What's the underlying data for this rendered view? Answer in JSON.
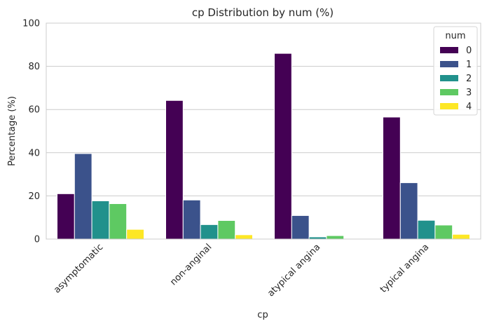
{
  "chart_data": {
    "type": "bar",
    "title": "cp Distribution by num (%)",
    "xlabel": "cp",
    "ylabel": "Percentage (%)",
    "ylim": [
      0,
      100
    ],
    "yticks": [
      0,
      20,
      40,
      60,
      80,
      100
    ],
    "grid": "horizontal",
    "categories": [
      "asymptomatic",
      "non-anginal",
      "atypical angina",
      "typical angina"
    ],
    "legend": {
      "title": "num",
      "placement": "top-right"
    },
    "series": [
      {
        "name": "0",
        "color": "#440154",
        "values": [
          21.0,
          64.2,
          86.0,
          56.5
        ]
      },
      {
        "name": "1",
        "color": "#3b528b",
        "values": [
          39.6,
          18.1,
          10.9,
          26.1
        ]
      },
      {
        "name": "2",
        "color": "#21918c",
        "values": [
          17.7,
          6.7,
          1.0,
          8.7
        ]
      },
      {
        "name": "3",
        "color": "#5ec962",
        "values": [
          16.4,
          8.6,
          1.6,
          6.5
        ]
      },
      {
        "name": "4",
        "color": "#fde725",
        "values": [
          4.5,
          2.0,
          0.0,
          2.2
        ]
      }
    ]
  }
}
